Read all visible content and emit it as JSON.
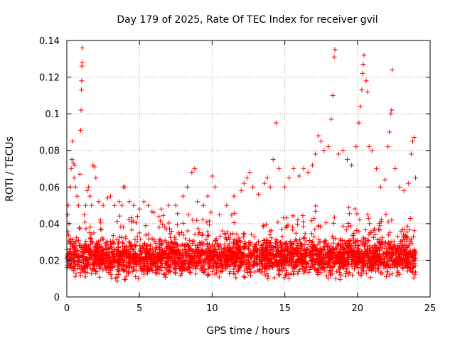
{
  "chart_data": {
    "type": "scatter",
    "title": "Day 179 of 2025, Rate Of TEC Index for receiver gvil",
    "xlabel": "GPS time / hours",
    "ylabel": "ROTI / TECUs",
    "xlim": [
      0,
      25
    ],
    "ylim": [
      0,
      0.14
    ],
    "xticks": [
      0,
      5,
      10,
      15,
      20,
      25
    ],
    "xtick_labels": [
      "0",
      "5",
      "10",
      "15",
      "20",
      "25"
    ],
    "yticks": [
      0,
      0.02,
      0.04,
      0.06,
      0.08,
      0.1,
      0.12,
      0.14
    ],
    "ytick_labels": [
      "0",
      "0.02",
      "0.04",
      "0.06",
      "0.08",
      "0.1",
      "0.12",
      "0.14"
    ],
    "grid": true,
    "marker": "+",
    "color": "#ff0000",
    "series": [
      {
        "name": "ROTI",
        "points": [
          [
            0.05,
            0.045
          ],
          [
            0.1,
            0.05
          ],
          [
            0.15,
            0.04
          ],
          [
            0.25,
            0.06
          ],
          [
            0.3,
            0.07
          ],
          [
            0.35,
            0.075
          ],
          [
            0.4,
            0.085
          ],
          [
            0.45,
            0.073
          ],
          [
            0.5,
            0.065
          ],
          [
            0.55,
            0.072
          ],
          [
            0.6,
            0.06
          ],
          [
            0.7,
            0.055
          ],
          [
            0.8,
            0.05
          ],
          [
            0.9,
            0.067
          ],
          [
            0.95,
            0.091
          ],
          [
            0.98,
            0.102
          ],
          [
            1.0,
            0.113
          ],
          [
            1.02,
            0.118
          ],
          [
            1.04,
            0.126
          ],
          [
            1.05,
            0.128
          ],
          [
            1.06,
            0.136
          ],
          [
            1.2,
            0.045
          ],
          [
            1.3,
            0.05
          ],
          [
            1.4,
            0.058
          ],
          [
            1.5,
            0.06
          ],
          [
            1.6,
            0.055
          ],
          [
            1.7,
            0.05
          ],
          [
            1.8,
            0.072
          ],
          [
            1.9,
            0.071
          ],
          [
            2.0,
            0.065
          ],
          [
            2.2,
            0.052
          ],
          [
            2.5,
            0.05
          ],
          [
            2.8,
            0.054
          ],
          [
            3.0,
            0.055
          ],
          [
            3.3,
            0.05
          ],
          [
            3.6,
            0.052
          ],
          [
            3.8,
            0.05
          ],
          [
            3.9,
            0.06
          ],
          [
            4.0,
            0.06
          ],
          [
            4.3,
            0.052
          ],
          [
            4.6,
            0.05
          ],
          [
            5.0,
            0.048
          ],
          [
            5.3,
            0.052
          ],
          [
            5.6,
            0.05
          ],
          [
            6.0,
            0.046
          ],
          [
            6.5,
            0.048
          ],
          [
            7.0,
            0.05
          ],
          [
            7.5,
            0.05
          ],
          [
            8.0,
            0.055
          ],
          [
            8.3,
            0.06
          ],
          [
            8.6,
            0.068
          ],
          [
            8.8,
            0.07
          ],
          [
            9.0,
            0.052
          ],
          [
            9.4,
            0.05
          ],
          [
            9.7,
            0.055
          ],
          [
            10.0,
            0.066
          ],
          [
            10.2,
            0.06
          ],
          [
            10.5,
            0.045
          ],
          [
            11.0,
            0.05
          ],
          [
            11.5,
            0.055
          ],
          [
            12.0,
            0.058
          ],
          [
            12.2,
            0.062
          ],
          [
            12.4,
            0.065
          ],
          [
            12.6,
            0.068
          ],
          [
            12.8,
            0.06
          ],
          [
            13.2,
            0.056
          ],
          [
            13.6,
            0.062
          ],
          [
            13.8,
            0.065
          ],
          [
            14.0,
            0.06
          ],
          [
            14.2,
            0.075
          ],
          [
            14.4,
            0.095
          ],
          [
            14.6,
            0.07
          ],
          [
            15.0,
            0.06
          ],
          [
            15.3,
            0.065
          ],
          [
            15.6,
            0.07
          ],
          [
            16.0,
            0.066
          ],
          [
            16.3,
            0.07
          ],
          [
            16.6,
            0.068
          ],
          [
            16.9,
            0.072
          ],
          [
            17.1,
            0.078
          ],
          [
            17.3,
            0.088
          ],
          [
            17.5,
            0.085
          ],
          [
            17.7,
            0.08
          ],
          [
            18.0,
            0.082
          ],
          [
            18.2,
            0.097
          ],
          [
            18.3,
            0.11
          ],
          [
            18.4,
            0.131
          ],
          [
            18.45,
            0.135
          ],
          [
            18.7,
            0.078
          ],
          [
            19.0,
            0.08
          ],
          [
            19.3,
            0.075
          ],
          [
            19.6,
            0.072
          ],
          [
            19.9,
            0.082
          ],
          [
            20.1,
            0.095
          ],
          [
            20.2,
            0.104
          ],
          [
            20.3,
            0.113
          ],
          [
            20.35,
            0.122
          ],
          [
            20.4,
            0.127
          ],
          [
            20.45,
            0.132
          ],
          [
            20.6,
            0.118
          ],
          [
            20.7,
            0.112
          ],
          [
            20.8,
            0.082
          ],
          [
            21.0,
            0.08
          ],
          [
            21.3,
            0.07
          ],
          [
            21.6,
            0.06
          ],
          [
            21.9,
            0.064
          ],
          [
            22.1,
            0.082
          ],
          [
            22.2,
            0.09
          ],
          [
            22.3,
            0.1
          ],
          [
            22.35,
            0.102
          ],
          [
            22.4,
            0.124
          ],
          [
            22.6,
            0.07
          ],
          [
            22.9,
            0.06
          ],
          [
            23.2,
            0.058
          ],
          [
            23.5,
            0.062
          ],
          [
            23.7,
            0.078
          ],
          [
            23.8,
            0.085
          ],
          [
            23.9,
            0.087
          ],
          [
            24.0,
            0.065
          ]
        ],
        "baseline": {
          "x_range": [
            0,
            24
          ],
          "band_low": 0.008,
          "band_high": 0.035,
          "median": 0.02
        }
      }
    ]
  }
}
